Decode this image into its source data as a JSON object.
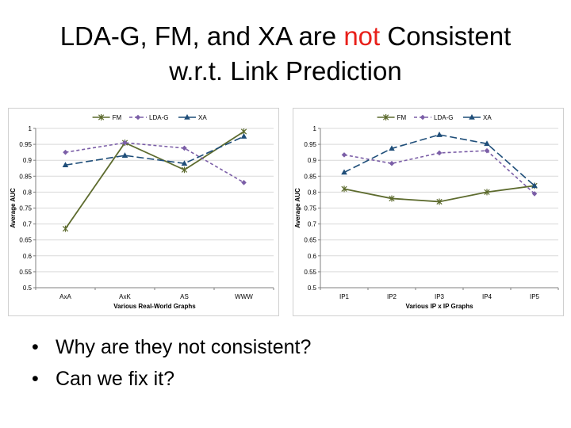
{
  "slide": {
    "title_line1_before": "LDA-G, FM, and XA are ",
    "title_highlight": "not",
    "title_line1_after": " Consistent",
    "title_line2": "w.r.t. Link Prediction",
    "highlight_color": "#e8201a"
  },
  "bullets": [
    {
      "marker": "•",
      "text": "Why are they not consistent?"
    },
    {
      "marker": "•",
      "text": "Can we fix it?"
    }
  ],
  "chart_data": [
    {
      "type": "line",
      "categories": [
        "AxA",
        "AxK",
        "AS",
        "WWW"
      ],
      "xlabel": "Various Real-World Graphs",
      "ylabel": "Average AUC",
      "ylim": [
        0.5,
        1
      ],
      "yticks": [
        "0.5",
        "0.55",
        "0.6",
        "0.65",
        "0.7",
        "0.75",
        "0.8",
        "0.85",
        "0.9",
        "0.95",
        "1"
      ],
      "grid": true,
      "legend_position": "top",
      "series": [
        {
          "name": "FM",
          "values": [
            0.685,
            0.955,
            0.87,
            0.99
          ],
          "color": "#5d6b2e",
          "marker": "star",
          "dash": "solid"
        },
        {
          "name": "LDA-G",
          "values": [
            0.925,
            0.955,
            0.938,
            0.83
          ],
          "color": "#7b5ea7",
          "marker": "diamond",
          "dash": "short-dash"
        },
        {
          "name": "XA",
          "values": [
            0.885,
            0.915,
            0.89,
            0.975
          ],
          "color": "#1f4e79",
          "marker": "triangle",
          "dash": "long-dash"
        }
      ]
    },
    {
      "type": "line",
      "categories": [
        "IP1",
        "IP2",
        "IP3",
        "IP4",
        "IP5"
      ],
      "xlabel": "Various IP x IP Graphs",
      "ylabel": "Average AUC",
      "ylim": [
        0.5,
        1
      ],
      "yticks": [
        "0.5",
        "0.55",
        "0.6",
        "0.65",
        "0.7",
        "0.75",
        "0.8",
        "0.85",
        "0.9",
        "0.95",
        "1"
      ],
      "grid": true,
      "legend_position": "top",
      "series": [
        {
          "name": "FM",
          "values": [
            0.81,
            0.78,
            0.77,
            0.8,
            0.82
          ],
          "color": "#5d6b2e",
          "marker": "star",
          "dash": "solid"
        },
        {
          "name": "LDA-G",
          "values": [
            0.917,
            0.89,
            0.923,
            0.93,
            0.795
          ],
          "color": "#7b5ea7",
          "marker": "diamond",
          "dash": "short-dash"
        },
        {
          "name": "XA",
          "values": [
            0.862,
            0.937,
            0.98,
            0.952,
            0.82
          ],
          "color": "#1f4e79",
          "marker": "triangle",
          "dash": "long-dash"
        }
      ]
    }
  ]
}
